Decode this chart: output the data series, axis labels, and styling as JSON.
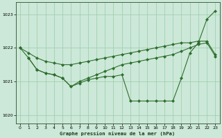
{
  "xlabel": "Graphe pression niveau de la mer (hPa)",
  "background_color": "#cce8d8",
  "line_color": "#2d6e2d",
  "grid_color": "#99ccaa",
  "xlim": [
    -0.5,
    23.5
  ],
  "ylim": [
    1019.75,
    1023.35
  ],
  "yticks": [
    1020,
    1021,
    1022,
    1023
  ],
  "xticks": [
    0,
    1,
    2,
    3,
    4,
    5,
    6,
    7,
    8,
    9,
    10,
    11,
    12,
    13,
    14,
    15,
    16,
    17,
    18,
    19,
    20,
    21,
    22,
    23
  ],
  "series": [
    {
      "x": [
        0,
        1,
        2,
        3,
        4,
        5,
        6,
        7,
        8,
        9,
        10,
        11,
        12,
        13,
        14,
        15,
        16,
        17,
        18,
        19,
        20,
        21,
        22,
        23
      ],
      "y": [
        1022.0,
        1021.7,
        1021.35,
        1021.25,
        1021.2,
        1021.1,
        1020.85,
        1020.95,
        1021.05,
        1021.1,
        1021.15,
        1021.15,
        1021.2,
        1020.42,
        1020.42,
        1020.42,
        1020.42,
        1020.42,
        1020.42,
        1021.1,
        1021.85,
        1022.15,
        1022.85,
        1023.1
      ]
    },
    {
      "x": [
        0,
        1,
        2,
        3,
        4,
        5,
        6,
        7,
        8,
        9,
        10,
        11,
        12,
        13,
        14,
        15,
        16,
        17,
        18,
        19,
        20,
        21,
        22,
        23
      ],
      "y": [
        1022.0,
        1021.85,
        1021.7,
        1021.6,
        1021.55,
        1021.5,
        1021.5,
        1021.55,
        1021.6,
        1021.65,
        1021.7,
        1021.75,
        1021.8,
        1021.85,
        1021.9,
        1021.95,
        1022.0,
        1022.05,
        1022.1,
        1022.15,
        1022.15,
        1022.2,
        1022.2,
        1021.8
      ]
    },
    {
      "x": [
        1,
        2,
        3,
        4,
        5,
        6,
        7,
        8,
        9,
        10,
        11,
        12,
        13,
        14,
        15,
        16,
        17,
        18,
        19,
        20,
        21,
        22,
        23
      ],
      "y": [
        1021.7,
        1021.35,
        1021.25,
        1021.2,
        1021.1,
        1020.85,
        1021.0,
        1021.1,
        1021.2,
        1021.3,
        1021.4,
        1021.5,
        1021.55,
        1021.6,
        1021.65,
        1021.7,
        1021.75,
        1021.8,
        1021.9,
        1022.0,
        1022.1,
        1022.15,
        1021.75
      ]
    }
  ]
}
